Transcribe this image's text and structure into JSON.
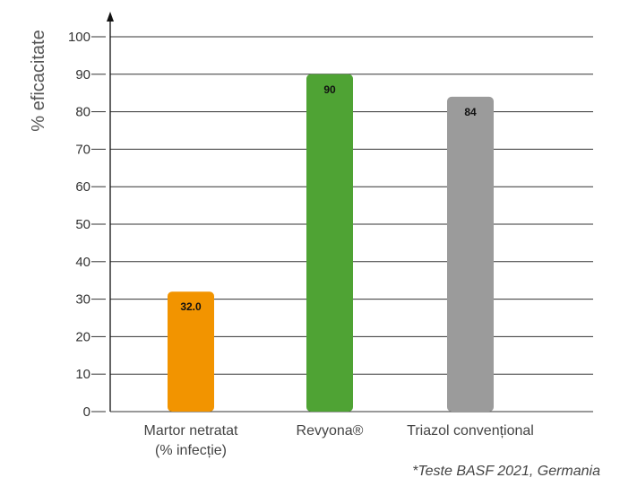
{
  "chart_data": {
    "type": "bar",
    "categories": [
      {
        "line1": "Martor netratat",
        "line2": "(% infecție)"
      },
      {
        "line1": "Revyona®",
        "line2": ""
      },
      {
        "line1": "Triazol convențional",
        "line2": ""
      }
    ],
    "values": [
      32.0,
      90,
      84
    ],
    "value_labels": [
      "32.0",
      "90",
      "84"
    ],
    "bar_colors": [
      "#f29400",
      "#4fa334",
      "#9b9b9b"
    ],
    "ylabel": "% eficacitate",
    "ylim": [
      0,
      100
    ],
    "yticks": [
      0,
      10,
      20,
      30,
      40,
      50,
      60,
      70,
      80,
      90,
      100
    ],
    "grid": true
  },
  "footnote": "*Teste BASF 2021, Germania"
}
